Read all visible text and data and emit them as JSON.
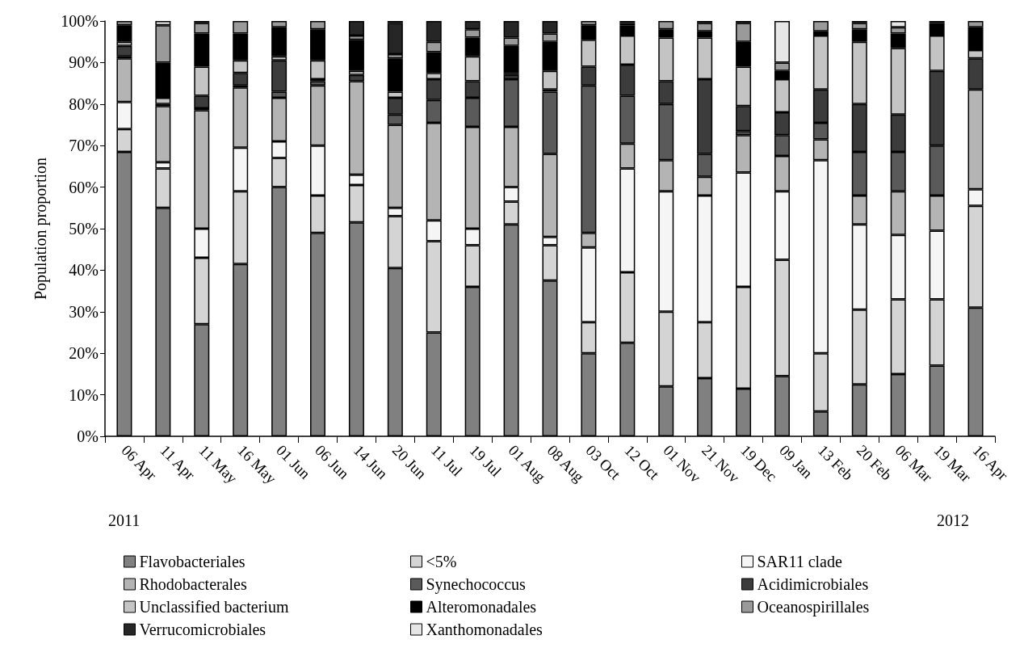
{
  "chart_data": {
    "type": "bar",
    "stacked": true,
    "ylabel": "Population proportion",
    "categories": [
      "06 Apr",
      "11 Apr",
      "11 May",
      "16 May",
      "01 Jun",
      "06 Jun",
      "14 Jun",
      "20 Jun",
      "11 Jul",
      "19 Jul",
      "01 Aug",
      "08 Aug",
      "03 Oct",
      "12 Oct",
      "01 Nov",
      "21 Nov",
      "19 Dec",
      "09 Jan",
      "13 Feb",
      "20 Feb",
      "06 Mar",
      "19 Mar",
      "16 Apr"
    ],
    "series": [
      {
        "name": "Flavobacteriales",
        "color": "#808080",
        "values": [
          68.5,
          55,
          27,
          41.5,
          60,
          49,
          51.5,
          40.5,
          25,
          36,
          51,
          37.5,
          20,
          22.5,
          12,
          14,
          11.5,
          14.5,
          6,
          12.5,
          15,
          17,
          31
        ]
      },
      {
        "name": "<5%",
        "color": "#d4d4d4",
        "values": [
          5.5,
          9.5,
          16,
          17.5,
          7,
          9,
          9,
          12.5,
          22,
          10,
          5.5,
          8.5,
          7.5,
          17,
          18,
          13.5,
          24.5,
          28,
          14,
          18,
          18,
          16,
          24.5
        ]
      },
      {
        "name": "SAR11 clade",
        "color": "#f5f5f5",
        "values": [
          6.5,
          1.5,
          7,
          10.5,
          4,
          12,
          2.5,
          2,
          5,
          4,
          3.5,
          2,
          18,
          25,
          29,
          30.5,
          27.5,
          16.5,
          46.5,
          20.5,
          15.5,
          16.5,
          4
        ]
      },
      {
        "name": "Rhodobacterales",
        "color": "#b4b4b4",
        "values": [
          10.5,
          13.5,
          28.5,
          14.5,
          10.5,
          14.5,
          22.5,
          20,
          23.5,
          24.5,
          14.5,
          20,
          3.5,
          6,
          7.5,
          4.5,
          9,
          8.5,
          5,
          7,
          10.5,
          8.5,
          24
        ]
      },
      {
        "name": "Synechococcus",
        "color": "#5a5a5a",
        "values": [
          0.5,
          0.5,
          0.5,
          0.5,
          1.5,
          1,
          0,
          2.5,
          5.5,
          7,
          11.5,
          15,
          35.5,
          11.5,
          13.5,
          5.5,
          1,
          5,
          4,
          10.5,
          9.5,
          12,
          0
        ]
      },
      {
        "name": "Acidimicrobiales",
        "color": "#3c3c3c",
        "values": [
          2.5,
          0,
          3,
          3,
          7.5,
          0.5,
          1.5,
          4,
          5,
          4,
          1,
          0.5,
          4.5,
          7.5,
          5.5,
          18,
          6,
          5.5,
          8,
          11.5,
          9,
          18,
          7.5
        ]
      },
      {
        "name": "Unclassified bacterium",
        "color": "#c4c4c4",
        "values": [
          1,
          1.5,
          7,
          3,
          1,
          4.5,
          1,
          1.5,
          1.5,
          6,
          0.5,
          4.5,
          6.5,
          7,
          10.5,
          10,
          9.5,
          8,
          13,
          15,
          16,
          8.5,
          2
        ]
      },
      {
        "name": "Alteromonadales",
        "color": "#000000",
        "values": [
          4,
          8.5,
          8,
          6.5,
          7,
          7.5,
          7.5,
          8,
          5,
          4.5,
          6.5,
          7,
          3.5,
          2.5,
          2,
          1.5,
          6,
          2,
          1,
          3,
          3.5,
          3,
          5.5
        ]
      },
      {
        "name": "Oceanospirillales",
        "color": "#9a9a9a",
        "values": [
          1,
          9,
          2.5,
          3,
          1.5,
          2,
          1,
          1,
          2.5,
          2,
          2,
          2,
          1,
          0.5,
          2,
          2,
          4.5,
          2,
          2.5,
          1.5,
          1.5,
          0.5,
          1.5
        ]
      },
      {
        "name": "Verrucomicrobiales",
        "color": "#262626",
        "values": [
          0,
          0,
          0.5,
          0,
          0,
          0,
          3.5,
          7.5,
          5,
          2,
          4,
          3,
          0,
          0.5,
          0,
          0.5,
          0,
          0,
          0,
          0.5,
          0,
          0,
          0
        ]
      },
      {
        "name": "Xanthomonadales",
        "color": "#e6e6e6",
        "values": [
          0,
          1,
          0,
          0,
          0,
          0,
          0,
          0.5,
          0,
          0,
          0,
          0,
          0,
          0,
          0,
          0,
          0.5,
          10,
          0,
          0,
          1.5,
          0,
          0
        ]
      }
    ],
    "ylim": [
      0,
      100
    ],
    "yticks": [
      {
        "value": 0,
        "label": "0%"
      },
      {
        "value": 10,
        "label": "10%"
      },
      {
        "value": 20,
        "label": "20%"
      },
      {
        "value": 30,
        "label": "30%"
      },
      {
        "value": 40,
        "label": "40%"
      },
      {
        "value": 50,
        "label": "50%"
      },
      {
        "value": 60,
        "label": "60%"
      },
      {
        "value": 70,
        "label": "70%"
      },
      {
        "value": 80,
        "label": "80%"
      },
      {
        "value": 90,
        "label": "90%"
      },
      {
        "value": 100,
        "label": "100%"
      }
    ],
    "grid": false,
    "legend": "bottom",
    "annotations": [
      "2011",
      "2012"
    ]
  }
}
